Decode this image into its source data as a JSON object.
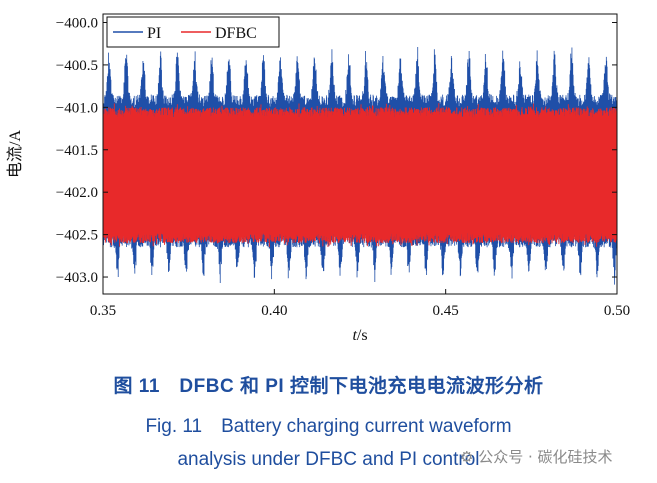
{
  "chart_data": {
    "type": "line",
    "title": "",
    "xlabel_italic": "t",
    "xlabel_unit": "/s",
    "ylabel": "电流/A",
    "xlim": [
      0.35,
      0.5
    ],
    "ylim": [
      -403.2,
      -399.9
    ],
    "x_ticks": [
      0.35,
      0.4,
      0.45,
      0.5
    ],
    "x_tick_labels": [
      "0.35",
      "0.40",
      "0.45",
      "0.50"
    ],
    "y_ticks": [
      -400.0,
      -400.5,
      -401.0,
      -401.5,
      -402.0,
      -402.5,
      -403.0
    ],
    "y_tick_labels": [
      "−400.0",
      "−400.5",
      "−401.0",
      "−401.5",
      "−402.0",
      "−402.5",
      "−403.0"
    ],
    "legend_position": "top-left",
    "series": [
      {
        "name": "PI",
        "color": "#1f4fa8",
        "center": -401.75,
        "band_min": -402.65,
        "band_max": -400.85,
        "peak_max": -400.25,
        "peak_min": -403.1,
        "burst_period_s": 0.005
      },
      {
        "name": "DFBC",
        "color": "#e8292a",
        "center": -401.75,
        "band_min": -402.6,
        "band_max": -401.0,
        "peak_max": -400.95,
        "peak_min": -402.65
      }
    ]
  },
  "caption": {
    "line1": "图 11　DFBC 和 PI 控制下电池充电电流波形分析",
    "line2": "Fig. 11　Battery charging current waveform",
    "line3": "analysis under DFBC and PI control"
  },
  "watermark": "⚙ 公众号 · 碳化硅技术"
}
